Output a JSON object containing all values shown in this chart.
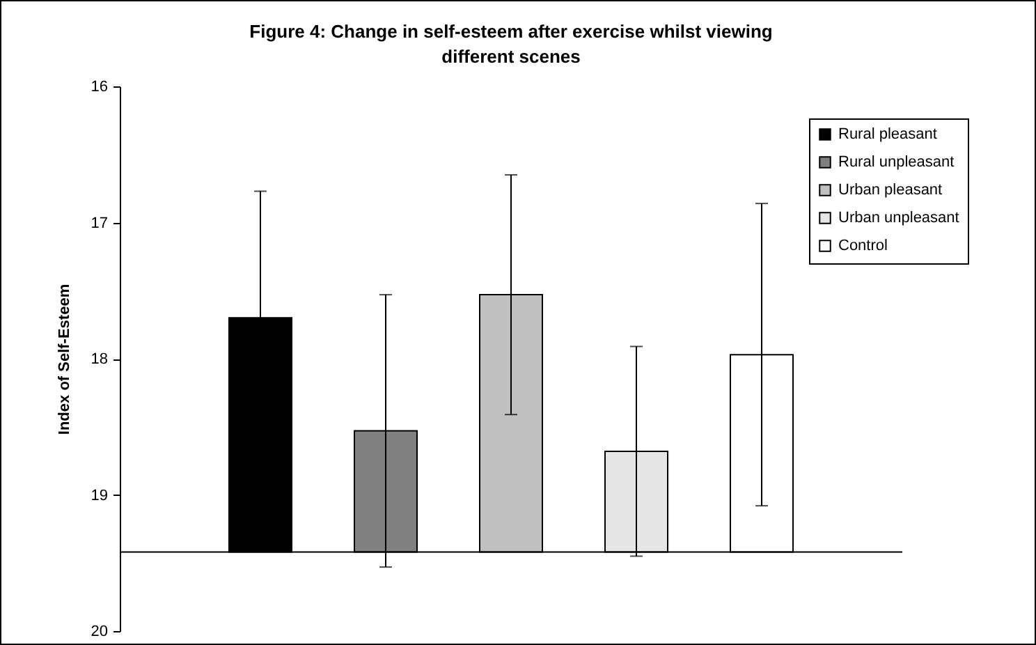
{
  "chart_data": {
    "type": "bar",
    "title": "Figure 4: Change in self-esteem after exercise whilst viewing different scenes",
    "ylabel": "Index of Self-Esteem",
    "categories": [
      null
    ],
    "series": [
      {
        "name": "Rural pleasant",
        "color": "#000000",
        "base": [
          19.42
        ],
        "values": [
          -1.72
        ],
        "errors": [
          0.93
        ]
      },
      {
        "name": "Rural unpleasant",
        "color": "#808080",
        "base": [
          19.42
        ],
        "values": [
          -0.89
        ],
        "errors": [
          1.0
        ]
      },
      {
        "name": "Urban pleasant",
        "color": "#c0c0c0",
        "base": [
          19.42
        ],
        "values": [
          -1.89
        ],
        "errors": [
          0.88
        ]
      },
      {
        "name": "Urban unpleasant",
        "color": "#e6e6e6",
        "base": [
          19.42
        ],
        "values": [
          -0.74
        ],
        "errors": [
          0.77
        ]
      },
      {
        "name": "Control",
        "color": "#ffffff",
        "base": [
          19.42
        ],
        "values": [
          -1.45
        ],
        "errors": [
          1.11
        ]
      }
    ],
    "ref_lines": [
      {
        "axis": "y",
        "value": 19.42
      }
    ],
    "ylim": [
      20,
      16
    ],
    "yticks": [
      16,
      17,
      18,
      19,
      20
    ],
    "legend": "top right",
    "tick_labels": "y"
  }
}
